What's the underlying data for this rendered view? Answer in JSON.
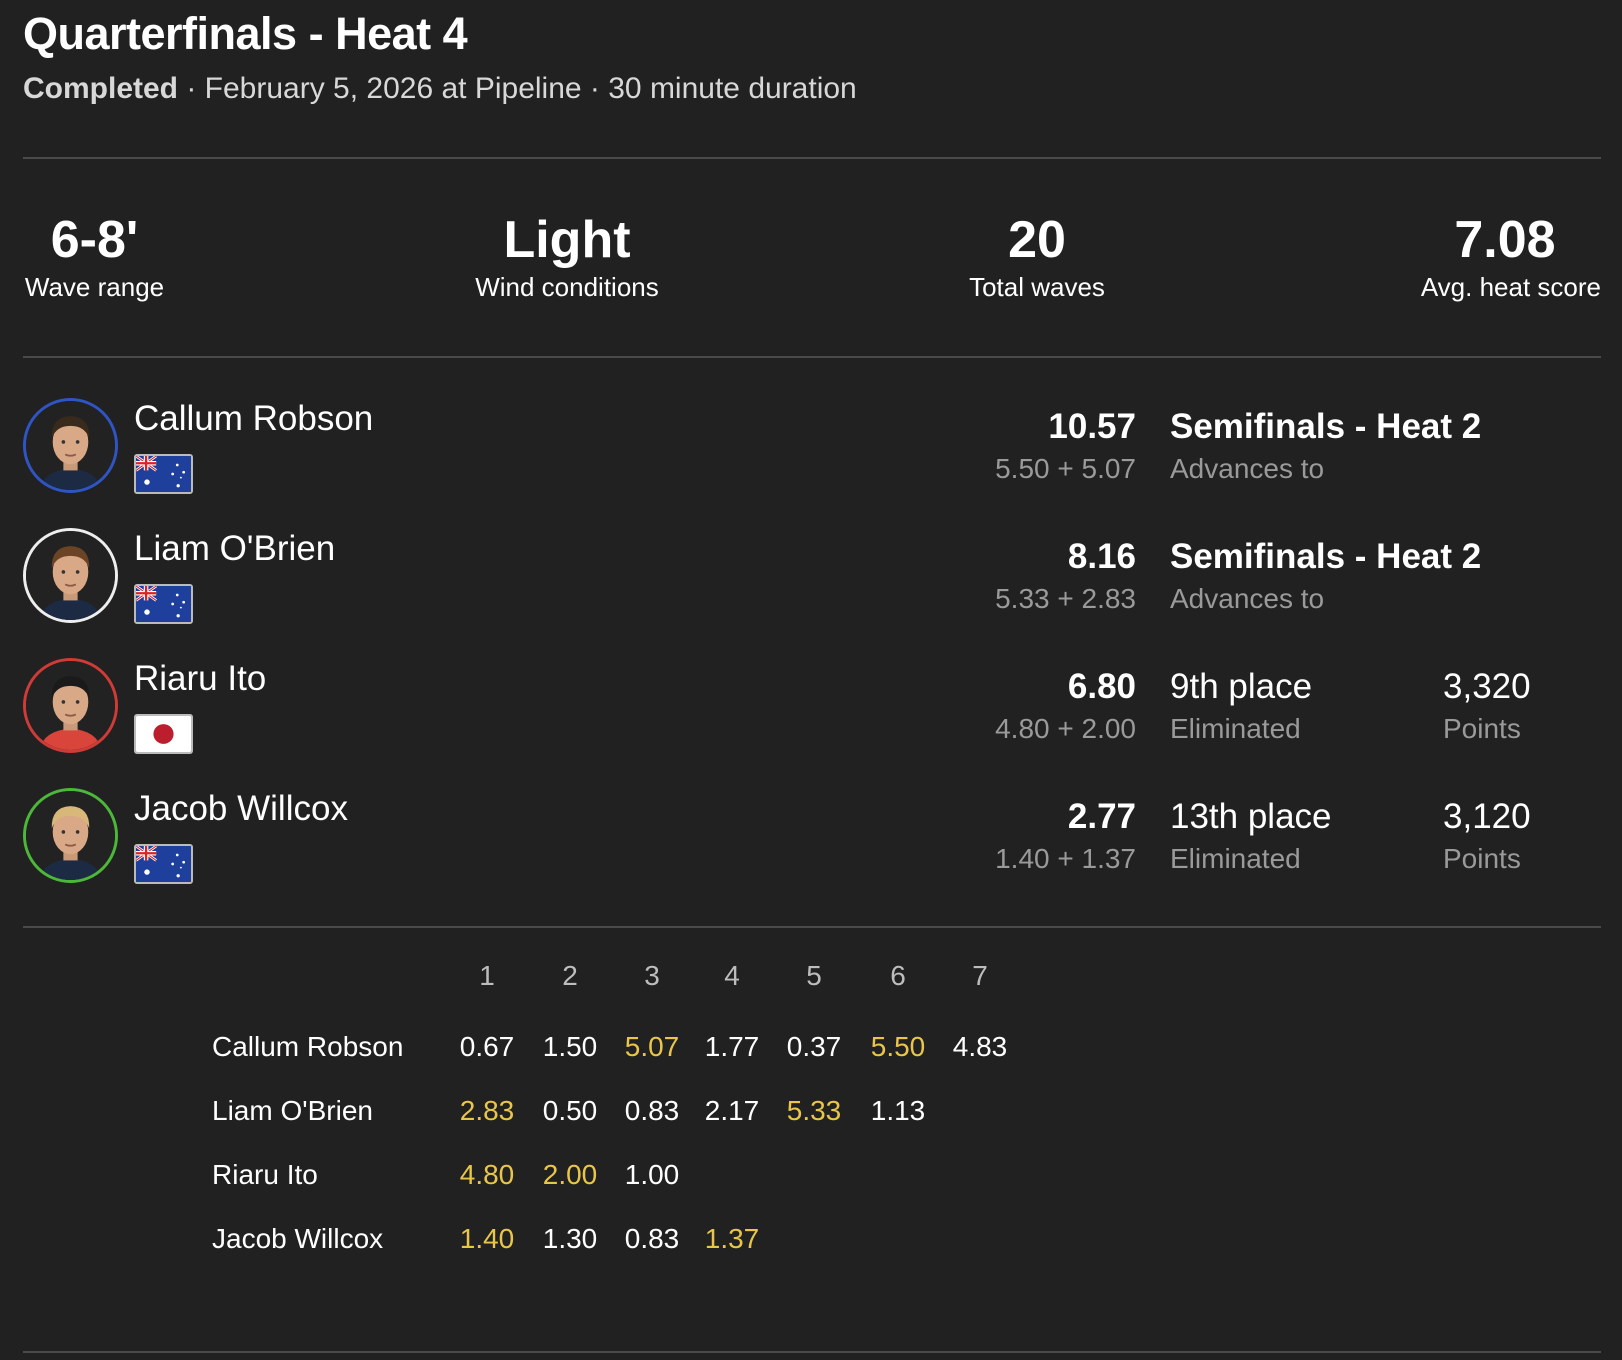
{
  "header": {
    "title": "Quarterfinals - Heat 4",
    "status": "Completed",
    "details": " · February 5, 2026 at Pipeline · 30 minute duration"
  },
  "stats": [
    {
      "value": "6-8'",
      "label": "Wave range"
    },
    {
      "value": "Light",
      "label": "Wind conditions"
    },
    {
      "value": "20",
      "label": "Total waves"
    },
    {
      "value": "7.08",
      "label": "Avg. heat score"
    }
  ],
  "colors": {
    "background": "#212121",
    "best_wave": "#e9c64a",
    "divider": "#4a4a4a"
  },
  "athletes": [
    {
      "name": "Callum Robson",
      "flag": "australia-flag",
      "ring": "#2f55c4",
      "total": "10.57",
      "waves": "5.50 + 5.07",
      "result": "Semifinals - Heat 2",
      "result_sub": "Advances to",
      "points": null,
      "points_label": null
    },
    {
      "name": "Liam O'Brien",
      "flag": "australia-flag",
      "ring": "#eeeeee",
      "total": "8.16",
      "waves": "5.33 + 2.83",
      "result": "Semifinals - Heat 2",
      "result_sub": "Advances to",
      "points": null,
      "points_label": null
    },
    {
      "name": "Riaru Ito",
      "flag": "japan-flag",
      "ring": "#cf3b36",
      "total": "6.80",
      "waves": "4.80 + 2.00",
      "result": "9th place",
      "result_sub": "Eliminated",
      "points": "3,320",
      "points_label": "Points"
    },
    {
      "name": "Jacob Willcox",
      "flag": "australia-flag",
      "ring": "#4cb83a",
      "total": "2.77",
      "waves": "1.40 + 1.37",
      "result": "13th place",
      "result_sub": "Eliminated",
      "points": "3,120",
      "points_label": "Points"
    }
  ],
  "wave_table": {
    "columns": [
      "1",
      "2",
      "3",
      "4",
      "5",
      "6",
      "7"
    ],
    "rows": [
      {
        "name": "Callum Robson",
        "scores": [
          "0.67",
          "1.50",
          "5.07",
          "1.77",
          "0.37",
          "5.50",
          "4.83"
        ],
        "best": [
          2,
          5
        ]
      },
      {
        "name": "Liam O'Brien",
        "scores": [
          "2.83",
          "0.50",
          "0.83",
          "2.17",
          "5.33",
          "1.13"
        ],
        "best": [
          0,
          4
        ]
      },
      {
        "name": "Riaru Ito",
        "scores": [
          "4.80",
          "2.00",
          "1.00"
        ],
        "best": [
          0,
          1
        ]
      },
      {
        "name": "Jacob Willcox",
        "scores": [
          "1.40",
          "1.30",
          "0.83",
          "1.37"
        ],
        "best": [
          0,
          3
        ]
      }
    ]
  }
}
